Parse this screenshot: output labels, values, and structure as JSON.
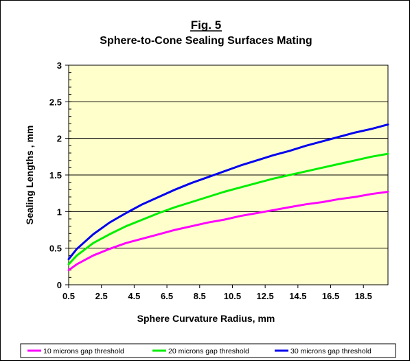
{
  "chart_data": {
    "type": "line",
    "title": "Fig. 5",
    "subtitle": "Sphere-to-Cone Sealing Surfaces Mating",
    "xlabel": "Sphere Curvature Radius, mm",
    "ylabel": "Sealing Lengths , mm",
    "xlim": [
      0.5,
      20
    ],
    "ylim": [
      0,
      3
    ],
    "xticks": [
      "0.5",
      "2.5",
      "4.5",
      "6.5",
      "8.5",
      "10.5",
      "12.5",
      "14.5",
      "16.5",
      "18.5"
    ],
    "yticks": [
      "0",
      "0.5",
      "1",
      "1.5",
      "2",
      "2.5",
      "3"
    ],
    "grid": "horizontal",
    "plot_background": "#ffffcc",
    "legend_position": "bottom",
    "x": [
      0.5,
      1,
      2,
      3,
      4,
      5,
      6,
      7,
      8,
      9,
      10,
      11,
      12,
      13,
      14,
      15,
      16,
      17,
      18,
      19,
      20
    ],
    "series": [
      {
        "name": "10 microns gap threshold",
        "color": "#ff00ff",
        "values": [
          0.2,
          0.28,
          0.4,
          0.49,
          0.57,
          0.63,
          0.69,
          0.75,
          0.8,
          0.85,
          0.89,
          0.94,
          0.98,
          1.02,
          1.06,
          1.1,
          1.13,
          1.17,
          1.2,
          1.24,
          1.27
        ]
      },
      {
        "name": "20 microns gap threshold",
        "color": "#00ee00",
        "values": [
          0.28,
          0.4,
          0.57,
          0.69,
          0.8,
          0.89,
          0.98,
          1.06,
          1.13,
          1.2,
          1.27,
          1.33,
          1.39,
          1.45,
          1.5,
          1.55,
          1.6,
          1.65,
          1.7,
          1.75,
          1.79
        ]
      },
      {
        "name": "30 microns gap threshold",
        "color": "#0000ee",
        "values": [
          0.35,
          0.49,
          0.69,
          0.85,
          0.98,
          1.1,
          1.2,
          1.3,
          1.39,
          1.47,
          1.55,
          1.63,
          1.7,
          1.77,
          1.83,
          1.9,
          1.96,
          2.02,
          2.08,
          2.13,
          2.19
        ]
      }
    ]
  }
}
